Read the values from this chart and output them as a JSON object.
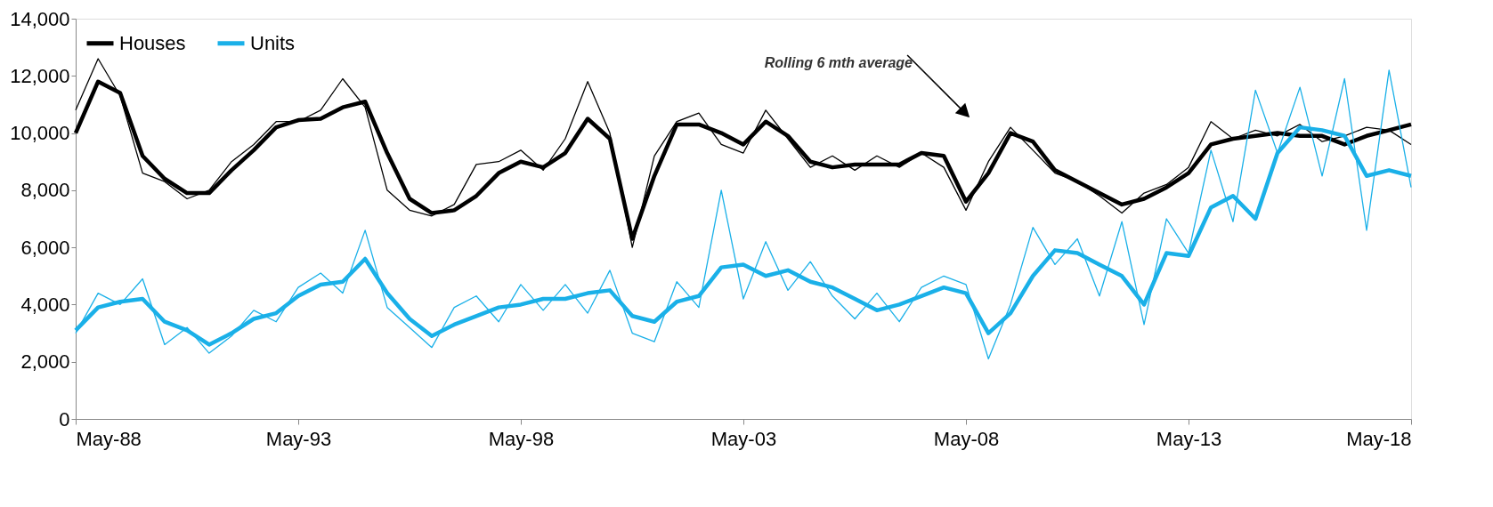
{
  "chart_data": {
    "type": "line",
    "x": [
      "1988-05",
      "1988-11",
      "1989-05",
      "1989-11",
      "1990-05",
      "1990-11",
      "1991-05",
      "1991-11",
      "1992-05",
      "1992-11",
      "1993-05",
      "1993-11",
      "1994-05",
      "1994-11",
      "1995-05",
      "1995-11",
      "1996-05",
      "1996-11",
      "1997-05",
      "1997-11",
      "1998-05",
      "1998-11",
      "1999-05",
      "1999-11",
      "2000-05",
      "2000-11",
      "2001-05",
      "2001-11",
      "2002-05",
      "2002-11",
      "2003-05",
      "2003-11",
      "2004-05",
      "2004-11",
      "2005-05",
      "2005-11",
      "2006-05",
      "2006-11",
      "2007-05",
      "2007-11",
      "2008-05",
      "2008-11",
      "2009-05",
      "2009-11",
      "2010-05",
      "2010-11",
      "2011-05",
      "2011-11",
      "2012-05",
      "2012-11",
      "2013-05",
      "2013-11",
      "2014-05",
      "2014-11",
      "2015-05",
      "2015-11",
      "2016-05",
      "2016-11",
      "2017-05",
      "2017-11",
      "2018-05"
    ],
    "series": [
      {
        "color": "#000000",
        "values": [
          10800,
          12600,
          11300,
          8600,
          8300,
          7700,
          8000,
          9000,
          9600,
          10400,
          10400,
          10800,
          11900,
          10900,
          8000,
          7300,
          7100,
          7500,
          8900,
          9000,
          9400,
          8700,
          9800,
          11800,
          10000,
          6000,
          9200,
          10400,
          10700,
          9600,
          9300,
          10800,
          9800,
          8800,
          9200,
          8700,
          9200,
          8800,
          9300,
          8800,
          7300,
          9000,
          10200,
          9400,
          8600,
          8300,
          7800,
          7200,
          7900,
          8200,
          8800,
          10400,
          9800,
          10100,
          9900,
          10300,
          9700,
          9900,
          10200,
          10100,
          9600
        ]
      },
      {
        "name": "Houses",
        "color": "#000000",
        "values": [
          10000,
          11800,
          11400,
          9200,
          8400,
          7900,
          7900,
          8700,
          9400,
          10200,
          10450,
          10500,
          10900,
          11100,
          9300,
          7700,
          7200,
          7300,
          7800,
          8600,
          9000,
          8800,
          9300,
          10500,
          9800,
          6300,
          8500,
          10300,
          10300,
          10000,
          9600,
          10400,
          9900,
          9000,
          8800,
          8900,
          8900,
          8900,
          9300,
          9200,
          7600,
          8600,
          10000,
          9700,
          8700,
          8300,
          7900,
          7500,
          7700,
          8100,
          8600,
          9600,
          9800,
          9900,
          10000,
          9900,
          9900,
          9600,
          9900,
          10100,
          10300
        ]
      },
      {
        "color": "#1ab0e8",
        "values": [
          3000,
          4400,
          4000,
          4900,
          2600,
          3200,
          2300,
          2900,
          3800,
          3400,
          4600,
          5100,
          4400,
          6600,
          3900,
          3200,
          2500,
          3900,
          4300,
          3400,
          4700,
          3800,
          4700,
          3700,
          5200,
          3000,
          2700,
          4800,
          3900,
          8000,
          4200,
          6200,
          4500,
          5500,
          4300,
          3500,
          4400,
          3400,
          4600,
          5000,
          4700,
          2100,
          4000,
          6700,
          5400,
          6300,
          4300,
          6900,
          3300,
          7000,
          5800,
          9400,
          6900,
          11500,
          9300,
          11600,
          8500,
          11900,
          6600,
          12200,
          8100
        ]
      },
      {
        "name": "Units",
        "color": "#1ab0e8",
        "values": [
          3100,
          3900,
          4100,
          4200,
          3400,
          3100,
          2600,
          3000,
          3500,
          3700,
          4300,
          4700,
          4800,
          5600,
          4400,
          3500,
          2900,
          3300,
          3600,
          3900,
          4000,
          4200,
          4200,
          4400,
          4500,
          3600,
          3400,
          4100,
          4300,
          5300,
          5400,
          5000,
          5200,
          4800,
          4600,
          4200,
          3800,
          4000,
          4300,
          4600,
          4400,
          3000,
          3700,
          5000,
          5900,
          5800,
          5400,
          5000,
          4000,
          5800,
          5700,
          7400,
          7800,
          7000,
          9300,
          10200,
          10100,
          9900,
          8500,
          8700,
          8500
        ]
      }
    ],
    "xlim": [
      "1988-05",
      "2018-05"
    ],
    "xticks": [
      {
        "value": "1988-05",
        "label": "May-88"
      },
      {
        "value": "1993-05",
        "label": "May-93"
      },
      {
        "value": "1998-05",
        "label": "May-98"
      },
      {
        "value": "2003-05",
        "label": "May-03"
      },
      {
        "value": "2008-05",
        "label": "May-08"
      },
      {
        "value": "2013-05",
        "label": "May-13"
      },
      {
        "value": "2018-05",
        "label": "May-18"
      }
    ],
    "ylim": [
      0,
      14000
    ],
    "yticks": [
      0,
      {
        "value": 2000,
        "label": "2,000"
      },
      {
        "value": 4000,
        "label": "4,000"
      },
      {
        "value": 6000,
        "label": "6,000"
      },
      {
        "value": 8000,
        "label": "8,000"
      },
      {
        "value": 10000,
        "label": "10,000"
      },
      {
        "value": 12000,
        "label": "12,000"
      },
      {
        "value": 14000,
        "label": "14,000"
      }
    ],
    "grid": false,
    "legend": "top left",
    "marker": "none",
    "line_style": "solid",
    "annotations": [
      "Rolling 6 mth average"
    ]
  }
}
